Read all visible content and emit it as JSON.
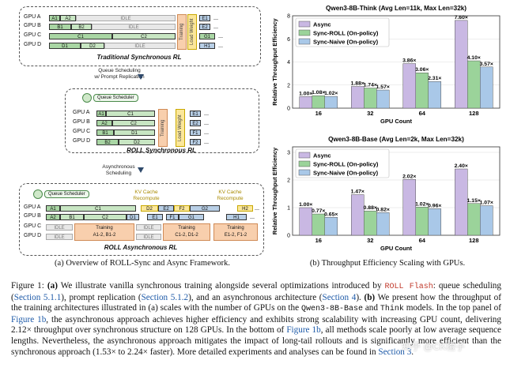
{
  "panel_a": {
    "traditional": {
      "title": "Traditional Synchronous RL",
      "gpus": [
        "GPU A",
        "GPU B",
        "GPU C",
        "GPU D"
      ],
      "rows": [
        [
          {
            "t": "A1"
          },
          {
            "t": "A2"
          },
          {
            "t": "IDLE"
          }
        ],
        [
          {
            "t": "B1"
          },
          {
            "t": "B2"
          },
          {
            "t": "IDLE"
          }
        ],
        [
          {
            "t": "C1"
          },
          {
            "t": "C2"
          }
        ],
        [
          {
            "t": "D1"
          },
          {
            "t": "D2"
          },
          {
            "t": "IDLE"
          }
        ]
      ],
      "training": "Training",
      "load_weight": "Load Weight",
      "next": [
        [
          "E1",
          "..."
        ],
        [
          "E2",
          "..."
        ],
        [
          "G1",
          "..."
        ],
        [
          "H1",
          "..."
        ]
      ]
    },
    "arrow1": "Queue Scheduling\nw/ Prompt Replication",
    "roll_sync": {
      "title": "ROLL Synchronous RL",
      "queue_scheduler": "Queue Scheduler",
      "gpus": [
        "GPU A",
        "GPU B",
        "GPU C",
        "GPU D"
      ],
      "rows": [
        [
          "A1",
          "C1"
        ],
        [
          "A2",
          "C2"
        ],
        [
          "B1",
          "D1"
        ],
        [
          "B2",
          "D2"
        ]
      ],
      "training": "Training",
      "load_weight": "Load Weight",
      "next": [
        [
          "E1",
          "..."
        ],
        [
          "E2",
          "..."
        ],
        [
          "F1",
          "..."
        ],
        [
          "F2",
          "..."
        ]
      ]
    },
    "arrow2": "Asynchronous\nScheduling",
    "roll_async": {
      "title": "ROLL Asynchronous RL",
      "queue_scheduler": "Queue Scheduler",
      "kv1": "KV Cache\nRecompute",
      "kv2": "KV Cache\nRecompute",
      "gpus": [
        "GPU A",
        "GPU B",
        "GPU C",
        "GPU D"
      ],
      "row_a": [
        "A1",
        "C1",
        "D2",
        "E2",
        "F2",
        "G2",
        "H2",
        "..."
      ],
      "row_b": [
        "A2",
        "B1",
        "C2",
        "D1",
        "E1",
        "F1",
        "G1",
        "H1",
        "..."
      ],
      "idle": "IDLE",
      "training1": "Training\nA1-2, B1-2",
      "training2": "Training\nC1-2, D1-2",
      "training3": "Training\nE1-2, F1-2",
      "misc": [
        "B2",
        "E2",
        "F2",
        "G2"
      ]
    },
    "caption": "(a) Overview of ROLL-Sync and Async Framework."
  },
  "panel_b": {
    "caption": "(b) Throughput Efficiency Scaling with GPUs.",
    "colors": {
      "async": "#c9b8e3",
      "roll": "#9bd39a",
      "naive": "#a9c8e8"
    },
    "chart_data": [
      {
        "type": "bar",
        "title": "Qwen3-8B-Think (Avg Len=11k, Max Len=32k)",
        "xlabel": "GPU Count",
        "ylabel": "Relative Throughput Efficiency",
        "categories": [
          "16",
          "32",
          "64",
          "128"
        ],
        "ylim": [
          0,
          8
        ],
        "series": [
          {
            "name": "Async",
            "values": [
              1.0,
              1.88,
              3.86,
              7.6
            ],
            "labels": [
              "1.00×",
              "1.88×",
              "3.86×",
              "7.60×"
            ]
          },
          {
            "name": "Sync-ROLL (On-policy)",
            "values": [
              1.08,
              1.74,
              3.06,
              4.1
            ],
            "labels": [
              "1.08×",
              "1.74×",
              "3.06×",
              "4.10×"
            ]
          },
          {
            "name": "Sync-Naive (On-policy)",
            "values": [
              1.02,
              1.57,
              2.31,
              3.57
            ],
            "labels": [
              "1.02×",
              "1.57×",
              "2.31×",
              "3.57×"
            ]
          }
        ]
      },
      {
        "type": "bar",
        "title": "Qwen3-8B-Base (Avg Len=2k, Max Len=32k)",
        "xlabel": "GPU Count",
        "ylabel": "Relative Throughput Efficiency",
        "categories": [
          "16",
          "32",
          "64",
          "128"
        ],
        "ylim": [
          0,
          3.2
        ],
        "series": [
          {
            "name": "Async",
            "values": [
              1.0,
              1.47,
              2.02,
              2.4
            ],
            "labels": [
              "1.00×",
              "1.47×",
              "2.02×",
              "2.40×"
            ]
          },
          {
            "name": "Sync-ROLL (On-policy)",
            "values": [
              0.77,
              0.88,
              1.02,
              1.15
            ],
            "labels": [
              "0.77×",
              "0.88×",
              "1.02×",
              "1.15×"
            ]
          },
          {
            "name": "Sync-Naive (On-policy)",
            "values": [
              0.65,
              0.82,
              0.96,
              1.07
            ],
            "labels": [
              "0.65×",
              "0.82×",
              "0.96×",
              "1.07×"
            ]
          }
        ]
      }
    ]
  },
  "figure_caption": {
    "p1": "Figure 1: ",
    "a_label": "(a)",
    "p2": " We illustrate vanilla synchronous training alongside several optimizations introduced by ",
    "roll_flash": "ROLL Flash",
    "p3": ": queue scheduling (",
    "sec511": "Section 5.1.1",
    "p4": "), prompt replication (",
    "sec512": "Section 5.1.2",
    "p5": "), and an asynchronous architecture (",
    "sec4": "Section 4",
    "p6": "). ",
    "b_label": "(b)",
    "p7": " We present how the throughput of the training architectures illustrated in (a) scales with the number of GPUs on the ",
    "base": "Qwen3-8B-Base",
    "p8": " and ",
    "think": "Think",
    "p9": " models. In the top panel of ",
    "fig1b_1": "Figure 1b",
    "p10": ", the asynchronous approach achieves higher efficiency and exhibits strong scalability with increasing GPU count, delivering 2.12× throughput over synchronous structure on 128 GPUs. In the bottom of ",
    "fig1b_2": "Figure 1b",
    "p11": ", all methods scale poorly at low average sequence lengths. Nevertheless, the asynchronous approach mitigates the impact of long-tail rollouts and is significantly more efficient than the synchronous approach (1.53× to 2.24× faster). More detailed experiments and analyses can be found in ",
    "sec3": "Section 3",
    "p12": ".",
    "watermark": "知乎 @CK橙子"
  }
}
